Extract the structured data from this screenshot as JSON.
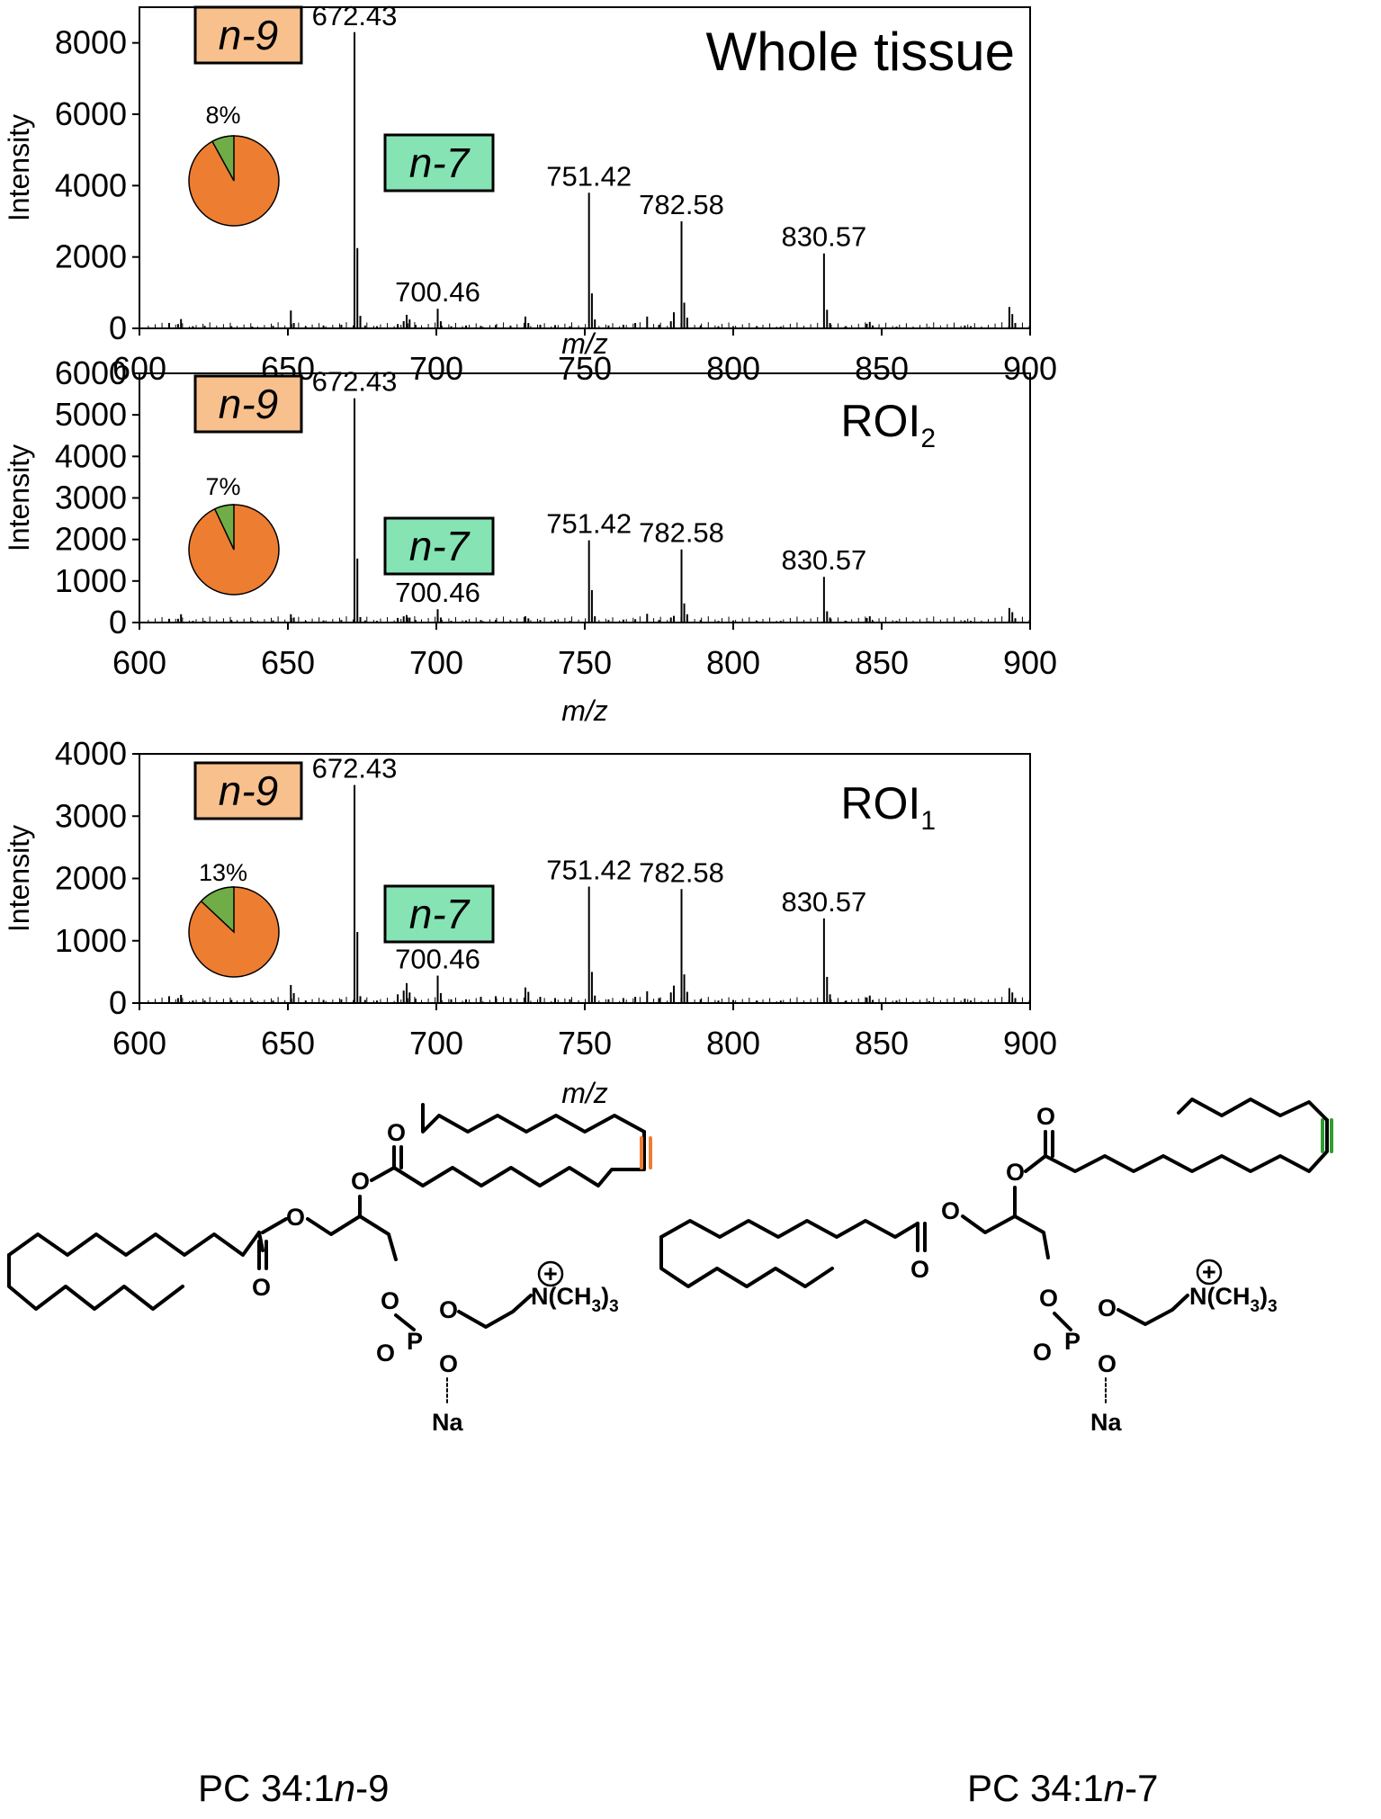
{
  "chart_data": [
    {
      "type": "bar",
      "title": "Whole tissue",
      "xlabel": "m/z",
      "ylabel": "Intensity",
      "xlim": [
        600,
        900
      ],
      "ylim": [
        0,
        9000
      ],
      "xticks": [
        600,
        650,
        700,
        750,
        800,
        850,
        900
      ],
      "yticks": [
        0,
        2000,
        4000,
        6000,
        8000
      ],
      "box_labels": [
        "n-9",
        "n-7"
      ],
      "pie": {
        "label": "8%",
        "slices": [
          {
            "name": "n-9",
            "value": 92,
            "color": "#ED7D31"
          },
          {
            "name": "n-7",
            "value": 8,
            "color": "#70AD47"
          }
        ]
      },
      "peak_labels": [
        {
          "text": "672.43",
          "x": 672.43,
          "y": 8300
        },
        {
          "text": "700.46",
          "x": 700.46,
          "y": 550
        },
        {
          "text": "751.42",
          "x": 751.42,
          "y": 3800
        },
        {
          "text": "782.58",
          "x": 782.58,
          "y": 3000
        },
        {
          "text": "830.57",
          "x": 830.57,
          "y": 2100
        }
      ],
      "peaks": [
        [
          610,
          150
        ],
        [
          613,
          120
        ],
        [
          614,
          260
        ],
        [
          618,
          60
        ],
        [
          622,
          70
        ],
        [
          631,
          60
        ],
        [
          638,
          50
        ],
        [
          645,
          70
        ],
        [
          651,
          500
        ],
        [
          652,
          150
        ],
        [
          656,
          60
        ],
        [
          662,
          80
        ],
        [
          668,
          100
        ],
        [
          672.43,
          8300
        ],
        [
          673.4,
          2250
        ],
        [
          674.4,
          350
        ],
        [
          676,
          80
        ],
        [
          680,
          60
        ],
        [
          687,
          120
        ],
        [
          689,
          200
        ],
        [
          690,
          380
        ],
        [
          691,
          250
        ],
        [
          693,
          100
        ],
        [
          700.46,
          550
        ],
        [
          701.5,
          200
        ],
        [
          705,
          60
        ],
        [
          710,
          80
        ],
        [
          715,
          70
        ],
        [
          720,
          90
        ],
        [
          725,
          70
        ],
        [
          730,
          330
        ],
        [
          731,
          150
        ],
        [
          735,
          100
        ],
        [
          740,
          90
        ],
        [
          745,
          60
        ],
        [
          751.42,
          3800
        ],
        [
          752.4,
          980
        ],
        [
          753.4,
          250
        ],
        [
          758,
          80
        ],
        [
          763,
          100
        ],
        [
          767,
          150
        ],
        [
          771,
          330
        ],
        [
          775,
          100
        ],
        [
          779,
          200
        ],
        [
          780,
          450
        ],
        [
          782.58,
          3000
        ],
        [
          783.5,
          720
        ],
        [
          784.5,
          300
        ],
        [
          789,
          80
        ],
        [
          795,
          60
        ],
        [
          800,
          60
        ],
        [
          808,
          60
        ],
        [
          816,
          50
        ],
        [
          830.57,
          2100
        ],
        [
          831.6,
          520
        ],
        [
          832.6,
          150
        ],
        [
          838,
          60
        ],
        [
          845,
          130
        ],
        [
          846,
          180
        ],
        [
          847,
          80
        ],
        [
          855,
          50
        ],
        [
          866,
          40
        ],
        [
          878,
          80
        ],
        [
          880,
          60
        ],
        [
          893,
          600
        ],
        [
          894,
          400
        ],
        [
          895,
          150
        ]
      ]
    },
    {
      "type": "bar",
      "title": "ROI2",
      "title_main": "ROI",
      "title_sub": "2",
      "xlabel": "m/z",
      "ylabel": "Intensity",
      "xlim": [
        600,
        900
      ],
      "ylim": [
        0,
        6000
      ],
      "xticks": [
        600,
        650,
        700,
        750,
        800,
        850,
        900
      ],
      "yticks": [
        0,
        1000,
        2000,
        3000,
        4000,
        5000,
        6000
      ],
      "box_labels": [
        "n-9",
        "n-7"
      ],
      "pie": {
        "label": "7%",
        "slices": [
          {
            "name": "n-9",
            "value": 93,
            "color": "#ED7D31"
          },
          {
            "name": "n-7",
            "value": 7,
            "color": "#70AD47"
          }
        ]
      },
      "peak_labels": [
        {
          "text": "672.43",
          "x": 672.43,
          "y": 5400
        },
        {
          "text": "700.46",
          "x": 700.46,
          "y": 320
        },
        {
          "text": "751.42",
          "x": 751.42,
          "y": 1980
        },
        {
          "text": "782.58",
          "x": 782.58,
          "y": 1760
        },
        {
          "text": "830.57",
          "x": 830.57,
          "y": 1100
        }
      ],
      "peaks": [
        [
          610,
          90
        ],
        [
          613,
          90
        ],
        [
          614,
          200
        ],
        [
          618,
          40
        ],
        [
          622,
          40
        ],
        [
          631,
          60
        ],
        [
          638,
          40
        ],
        [
          645,
          50
        ],
        [
          651,
          200
        ],
        [
          652,
          120
        ],
        [
          656,
          40
        ],
        [
          662,
          50
        ],
        [
          668,
          60
        ],
        [
          672.43,
          5400
        ],
        [
          673.4,
          1540
        ],
        [
          674.4,
          130
        ],
        [
          676,
          50
        ],
        [
          680,
          40
        ],
        [
          687,
          110
        ],
        [
          689,
          150
        ],
        [
          690,
          180
        ],
        [
          691,
          120
        ],
        [
          693,
          60
        ],
        [
          700.46,
          320
        ],
        [
          701.5,
          120
        ],
        [
          705,
          40
        ],
        [
          710,
          50
        ],
        [
          715,
          60
        ],
        [
          720,
          60
        ],
        [
          725,
          40
        ],
        [
          730,
          150
        ],
        [
          731,
          100
        ],
        [
          735,
          60
        ],
        [
          740,
          60
        ],
        [
          745,
          40
        ],
        [
          751.42,
          1980
        ],
        [
          752.4,
          780
        ],
        [
          753.4,
          150
        ],
        [
          758,
          60
        ],
        [
          763,
          70
        ],
        [
          767,
          80
        ],
        [
          771,
          210
        ],
        [
          775,
          60
        ],
        [
          779,
          120
        ],
        [
          780,
          160
        ],
        [
          782.58,
          1760
        ],
        [
          783.5,
          460
        ],
        [
          784.5,
          200
        ],
        [
          789,
          60
        ],
        [
          795,
          40
        ],
        [
          800,
          50
        ],
        [
          808,
          40
        ],
        [
          816,
          40
        ],
        [
          830.57,
          1100
        ],
        [
          831.6,
          270
        ],
        [
          832.6,
          120
        ],
        [
          838,
          40
        ],
        [
          845,
          110
        ],
        [
          846,
          150
        ],
        [
          847,
          50
        ],
        [
          855,
          40
        ],
        [
          866,
          30
        ],
        [
          878,
          50
        ],
        [
          880,
          40
        ],
        [
          893,
          350
        ],
        [
          894,
          250
        ],
        [
          895,
          100
        ]
      ]
    },
    {
      "type": "bar",
      "title": "ROI1",
      "title_main": "ROI",
      "title_sub": "1",
      "xlabel": "m/z",
      "ylabel": "Intensity",
      "xlim": [
        600,
        900
      ],
      "ylim": [
        0,
        4000
      ],
      "xticks": [
        600,
        650,
        700,
        750,
        800,
        850,
        900
      ],
      "yticks": [
        0,
        1000,
        2000,
        3000,
        4000
      ],
      "box_labels": [
        "n-9",
        "n-7"
      ],
      "pie": {
        "label": "13%",
        "slices": [
          {
            "name": "n-9",
            "value": 87,
            "color": "#ED7D31"
          },
          {
            "name": "n-7",
            "value": 13,
            "color": "#70AD47"
          }
        ]
      },
      "peak_labels": [
        {
          "text": "672.43",
          "x": 672.43,
          "y": 3500
        },
        {
          "text": "700.46",
          "x": 700.46,
          "y": 440
        },
        {
          "text": "751.42",
          "x": 751.42,
          "y": 1870
        },
        {
          "text": "782.58",
          "x": 782.58,
          "y": 1830
        },
        {
          "text": "830.57",
          "x": 830.57,
          "y": 1360
        }
      ],
      "peaks": [
        [
          610,
          110
        ],
        [
          613,
          80
        ],
        [
          614,
          130
        ],
        [
          618,
          40
        ],
        [
          622,
          40
        ],
        [
          631,
          50
        ],
        [
          638,
          40
        ],
        [
          645,
          40
        ],
        [
          651,
          290
        ],
        [
          652,
          160
        ],
        [
          656,
          40
        ],
        [
          662,
          50
        ],
        [
          668,
          60
        ],
        [
          672.43,
          3500
        ],
        [
          673.4,
          1140
        ],
        [
          674.4,
          110
        ],
        [
          676,
          50
        ],
        [
          680,
          40
        ],
        [
          687,
          140
        ],
        [
          689,
          200
        ],
        [
          690,
          320
        ],
        [
          691,
          170
        ],
        [
          693,
          70
        ],
        [
          700.46,
          440
        ],
        [
          701.5,
          160
        ],
        [
          705,
          60
        ],
        [
          710,
          60
        ],
        [
          715,
          100
        ],
        [
          720,
          110
        ],
        [
          725,
          80
        ],
        [
          730,
          250
        ],
        [
          731,
          180
        ],
        [
          735,
          100
        ],
        [
          740,
          80
        ],
        [
          745,
          60
        ],
        [
          751.42,
          1870
        ],
        [
          752.4,
          500
        ],
        [
          753.4,
          120
        ],
        [
          758,
          60
        ],
        [
          763,
          80
        ],
        [
          767,
          100
        ],
        [
          771,
          190
        ],
        [
          775,
          80
        ],
        [
          779,
          170
        ],
        [
          780,
          280
        ],
        [
          782.58,
          1830
        ],
        [
          783.5,
          460
        ],
        [
          784.5,
          180
        ],
        [
          789,
          60
        ],
        [
          795,
          40
        ],
        [
          800,
          50
        ],
        [
          808,
          40
        ],
        [
          816,
          40
        ],
        [
          830.57,
          1360
        ],
        [
          831.6,
          420
        ],
        [
          832.6,
          140
        ],
        [
          838,
          40
        ],
        [
          845,
          90
        ],
        [
          846,
          120
        ],
        [
          847,
          50
        ],
        [
          855,
          40
        ],
        [
          866,
          30
        ],
        [
          878,
          70
        ],
        [
          880,
          40
        ],
        [
          893,
          240
        ],
        [
          894,
          170
        ],
        [
          895,
          80
        ]
      ]
    }
  ],
  "structures": {
    "left": {
      "caption": "PC 34:1n-9",
      "caption_prefix": "PC 34:1",
      "caption_italic": "n",
      "caption_suffix": "-9",
      "highlight_color": "#ED7D31"
    },
    "right": {
      "caption": "PC 34:1n-7",
      "caption_prefix": "PC 34:1",
      "caption_italic": "n",
      "caption_suffix": "-7",
      "highlight_color": "#2E9E2E"
    },
    "atoms": {
      "oxygen": "O",
      "phosphorus": "P",
      "nitrogen_group": "N(CH",
      "methyl_sub": "3",
      "sodium": "Na",
      "charge": "+"
    }
  },
  "colors": {
    "n9_box": "#F8C08D",
    "n7_box": "#86E3B4",
    "pie_major": "#ED7D31",
    "pie_minor": "#70AD47"
  }
}
